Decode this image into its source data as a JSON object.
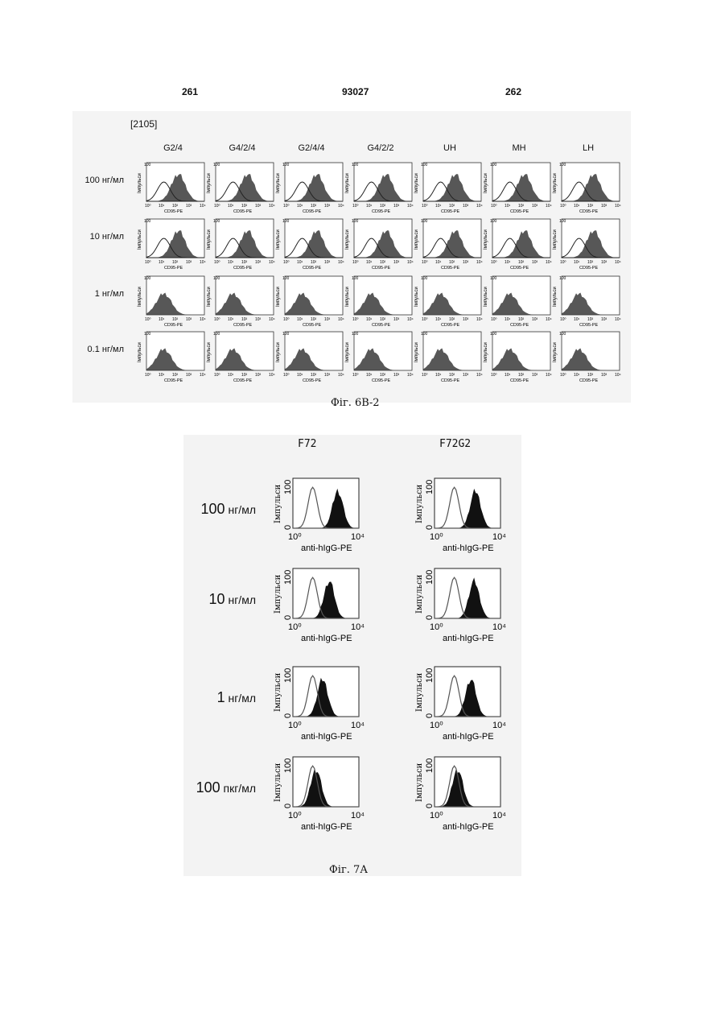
{
  "header": {
    "left": "261",
    "center": "93027",
    "right": "262"
  },
  "fig6": {
    "ref": "[2105]",
    "columns": [
      "G2/4",
      "G4/2/4",
      "G2/4/4",
      "G4/2/2",
      "UH",
      "MH",
      "LH"
    ],
    "rows": [
      "100 нг/мл",
      "10 нг/мл",
      "1 нг/мл",
      "0.1 нг/мл"
    ],
    "ylabel": "Імпульси",
    "ytick_top": "100",
    "xlabel": "CD95-PE",
    "xticks": [
      "10⁰",
      "10¹",
      "10²",
      "10³",
      "10⁴"
    ],
    "caption": "Фіг. 6В-2"
  },
  "fig7": {
    "columns": [
      "F72",
      "F72G2"
    ],
    "rows": [
      {
        "num": "100",
        "unit": " нг/мл"
      },
      {
        "num": "10",
        "unit": " нг/мл"
      },
      {
        "num": "1",
        "unit": " нг/мл"
      },
      {
        "num": "100",
        "unit": " пкг/мл"
      }
    ],
    "ylabel": "Імпульси",
    "ytick_top": "100",
    "ytick_bottom": "0",
    "xtick_left": "10⁰",
    "xtick_right": "10⁴",
    "xlabel": "anti-hIgG-PE",
    "caption": "Фіг. 7А"
  }
}
